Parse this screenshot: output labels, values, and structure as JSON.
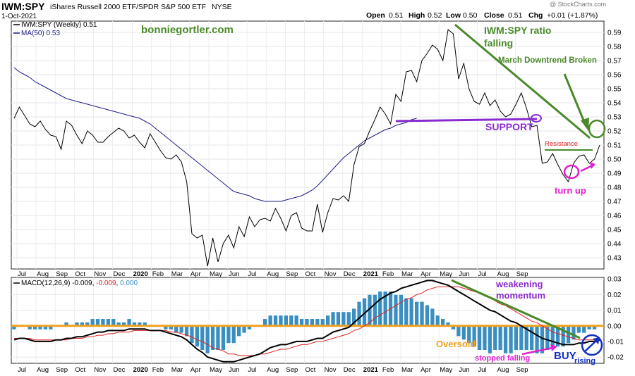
{
  "header": {
    "symbol": "IWM:SPY",
    "description": "iShares Russell 2000 ETF/SPDR S&P 500 ETF",
    "exchange": "NYSE",
    "date": "1-Oct-2021",
    "quote": {
      "open": "0.51",
      "high": "0.52",
      "low": "0.50",
      "close": "0.51",
      "chg": "+0.01 (+1.87%)"
    },
    "quote_labels": {
      "open": "Open",
      "high": "High",
      "low": "Low",
      "close": "Close",
      "chg": "Chg"
    },
    "watermark": "@ StockCharts.com"
  },
  "legend": {
    "price": "IWM:SPY (Weekly) 0.51",
    "ma": "MA(50) 0.53"
  },
  "macd_legend": {
    "label": "MACD(12,26,9)",
    "v1": "-0.009",
    "v2": "-0.009",
    "v3": "0.000"
  },
  "colors": {
    "price": "#000000",
    "ma": "#1c1c8c",
    "macd_signal": "#e02020",
    "histogram": "#3a8fc0",
    "zero_line": "#f0a020",
    "annotation_green": "#4a8a2a",
    "annotation_purple": "#8a2ad0",
    "annotation_magenta": "#e020d0",
    "annotation_blue": "#1030c0",
    "resistance": "#e02020"
  },
  "annotations": {
    "site": "bonniegortler.com",
    "ratio_falling_1": "IWM:SPY ratio",
    "ratio_falling_2": "falling",
    "downtrend": "March Downtrend Broken",
    "support": "SUPPORT",
    "resistance": "Resistance",
    "turn_up": "turn up",
    "weakening_1": "weakening",
    "weakening_2": "momentum",
    "oversold": "Oversold",
    "stopped": "stopped falling",
    "buy": "BUY",
    "rising": "rising"
  },
  "chart_data": [
    {
      "type": "line",
      "panel": "price",
      "x_labels": [
        "Jul",
        "Aug",
        "Sep",
        "Oct",
        "Nov",
        "Dec",
        "2020",
        "Feb",
        "Mar",
        "Apr",
        "May",
        "Jun",
        "Jul",
        "Aug",
        "Sep",
        "Oct",
        "Nov",
        "Dec",
        "2021",
        "Feb",
        "Mar",
        "Apr",
        "May",
        "Jun",
        "Jul",
        "Aug",
        "Sep"
      ],
      "ylim": [
        0.422,
        0.598
      ],
      "y_ticks": [
        "0.43",
        "0.44",
        "0.45",
        "0.46",
        "0.47",
        "0.48",
        "0.49",
        "0.50",
        "0.51",
        "0.52",
        "0.53",
        "0.54",
        "0.55",
        "0.56",
        "0.57",
        "0.58",
        "0.59"
      ],
      "y_tick_values": [
        0.43,
        0.44,
        0.45,
        0.46,
        0.47,
        0.48,
        0.49,
        0.5,
        0.51,
        0.52,
        0.53,
        0.54,
        0.55,
        0.56,
        0.57,
        0.58,
        0.59
      ],
      "series": [
        {
          "key": "price",
          "values": [
            0.529,
            0.537,
            0.531,
            0.525,
            0.523,
            0.527,
            0.521,
            0.517,
            0.516,
            0.507,
            0.527,
            0.524,
            0.517,
            0.511,
            0.52,
            0.517,
            0.512,
            0.512,
            0.516,
            0.519,
            0.522,
            0.52,
            0.515,
            0.517,
            0.512,
            0.508,
            0.518,
            0.512,
            0.506,
            0.501,
            0.5,
            0.503,
            0.498,
            0.484,
            0.447,
            0.444,
            0.446,
            0.424,
            0.444,
            0.427,
            0.44,
            0.446,
            0.437,
            0.452,
            0.445,
            0.459,
            0.452,
            0.457,
            0.458,
            0.456,
            0.465,
            0.458,
            0.449,
            0.46,
            0.462,
            0.451,
            0.449,
            0.449,
            0.468,
            0.448,
            0.462,
            0.472,
            0.471,
            0.474,
            0.47,
            0.496,
            0.509,
            0.511,
            0.52,
            0.528,
            0.537,
            0.532,
            0.525,
            0.546,
            0.541,
            0.562,
            0.563,
            0.555,
            0.57,
            0.575,
            0.581,
            0.578,
            0.57,
            0.592,
            0.589,
            0.557,
            0.568,
            0.55,
            0.541,
            0.539,
            0.547,
            0.538,
            0.542,
            0.534,
            0.53,
            0.532,
            0.539,
            0.547,
            0.536,
            0.523,
            0.524,
            0.497,
            0.498,
            0.504,
            0.496,
            0.489,
            0.484,
            0.497,
            0.502,
            0.503,
            0.497,
            0.5,
            0.51
          ]
        },
        {
          "key": "ma",
          "values": [
            0.565,
            0.562,
            0.56,
            0.558,
            0.555,
            0.553,
            0.551,
            0.549,
            0.547,
            0.545,
            0.543,
            0.542,
            0.541,
            0.54,
            0.539,
            0.538,
            0.537,
            0.536,
            0.535,
            0.534,
            0.533,
            0.532,
            0.531,
            0.53,
            0.529,
            0.527,
            0.525,
            0.522,
            0.519,
            0.516,
            0.513,
            0.51,
            0.507,
            0.504,
            0.501,
            0.498,
            0.495,
            0.492,
            0.489,
            0.486,
            0.483,
            0.48,
            0.477,
            0.476,
            0.475,
            0.474,
            0.472,
            0.471,
            0.47,
            0.47,
            0.47,
            0.47,
            0.471,
            0.472,
            0.473,
            0.474,
            0.476,
            0.478,
            0.481,
            0.485,
            0.489,
            0.493,
            0.497,
            0.501,
            0.504,
            0.507,
            0.51,
            0.513,
            0.515,
            0.517,
            0.519,
            0.521,
            0.522,
            0.524,
            0.525,
            0.526,
            0.528,
            0.529
          ]
        }
      ],
      "ma_start_index": 34
    },
    {
      "type": "line",
      "panel": "macd",
      "ylim": [
        -0.024,
        0.031
      ],
      "y_ticks": [
        "0.03",
        "0.02",
        "0.01",
        "0.00",
        "-0.01",
        "-0.02"
      ],
      "y_tick_values": [
        0.03,
        0.02,
        0.01,
        0.0,
        -0.01,
        -0.02
      ],
      "series": [
        {
          "key": "macd",
          "values": [
            -0.009,
            -0.008,
            -0.008,
            -0.009,
            -0.01,
            -0.01,
            -0.01,
            -0.01,
            -0.009,
            -0.009,
            -0.008,
            -0.008,
            -0.007,
            -0.007,
            -0.006,
            -0.005,
            -0.004,
            -0.004,
            -0.003,
            -0.003,
            -0.003,
            -0.003,
            -0.002,
            -0.002,
            -0.002,
            -0.002,
            -0.003,
            -0.003,
            -0.003,
            -0.004,
            -0.005,
            -0.006,
            -0.007,
            -0.009,
            -0.012,
            -0.015,
            -0.017,
            -0.02,
            -0.021,
            -0.022,
            -0.023,
            -0.023,
            -0.023,
            -0.022,
            -0.021,
            -0.02,
            -0.019,
            -0.018,
            -0.016,
            -0.014,
            -0.013,
            -0.012,
            -0.012,
            -0.011,
            -0.01,
            -0.01,
            -0.01,
            -0.009,
            -0.008,
            -0.008,
            -0.006,
            -0.004,
            -0.003,
            -0.002,
            -0.001,
            0.002,
            0.005,
            0.008,
            0.011,
            0.014,
            0.017,
            0.019,
            0.021,
            0.022,
            0.024,
            0.025,
            0.026,
            0.027,
            0.028,
            0.029,
            0.029,
            0.028,
            0.027,
            0.026,
            0.024,
            0.022,
            0.02,
            0.018,
            0.016,
            0.014,
            0.012,
            0.01,
            0.009,
            0.007,
            0.005,
            0.003,
            0.002,
            0.0,
            -0.002,
            -0.004,
            -0.006,
            -0.008,
            -0.009,
            -0.01,
            -0.011,
            -0.012,
            -0.012,
            -0.012,
            -0.011,
            -0.011,
            -0.01,
            -0.01,
            -0.009
          ]
        },
        {
          "key": "signal",
          "values": [
            -0.008,
            -0.008,
            -0.008,
            -0.008,
            -0.009,
            -0.009,
            -0.009,
            -0.009,
            -0.009,
            -0.009,
            -0.009,
            -0.008,
            -0.008,
            -0.008,
            -0.007,
            -0.007,
            -0.006,
            -0.006,
            -0.005,
            -0.005,
            -0.004,
            -0.004,
            -0.004,
            -0.003,
            -0.003,
            -0.003,
            -0.003,
            -0.003,
            -0.003,
            -0.003,
            -0.004,
            -0.004,
            -0.005,
            -0.006,
            -0.007,
            -0.009,
            -0.01,
            -0.012,
            -0.014,
            -0.015,
            -0.016,
            -0.018,
            -0.018,
            -0.019,
            -0.019,
            -0.019,
            -0.019,
            -0.018,
            -0.018,
            -0.017,
            -0.016,
            -0.015,
            -0.015,
            -0.014,
            -0.013,
            -0.012,
            -0.012,
            -0.011,
            -0.01,
            -0.01,
            -0.009,
            -0.008,
            -0.007,
            -0.006,
            -0.005,
            -0.003,
            -0.002,
            0.0,
            0.002,
            0.005,
            0.007,
            0.009,
            0.011,
            0.013,
            0.015,
            0.017,
            0.018,
            0.02,
            0.021,
            0.023,
            0.024,
            0.025,
            0.025,
            0.025,
            0.025,
            0.025,
            0.024,
            0.023,
            0.022,
            0.021,
            0.019,
            0.018,
            0.016,
            0.014,
            0.013,
            0.011,
            0.009,
            0.007,
            0.005,
            0.003,
            0.002,
            0.0,
            -0.002,
            -0.004,
            -0.005,
            -0.006,
            -0.007,
            -0.008,
            -0.009,
            -0.009,
            -0.009,
            -0.009,
            -0.009
          ]
        }
      ]
    }
  ]
}
